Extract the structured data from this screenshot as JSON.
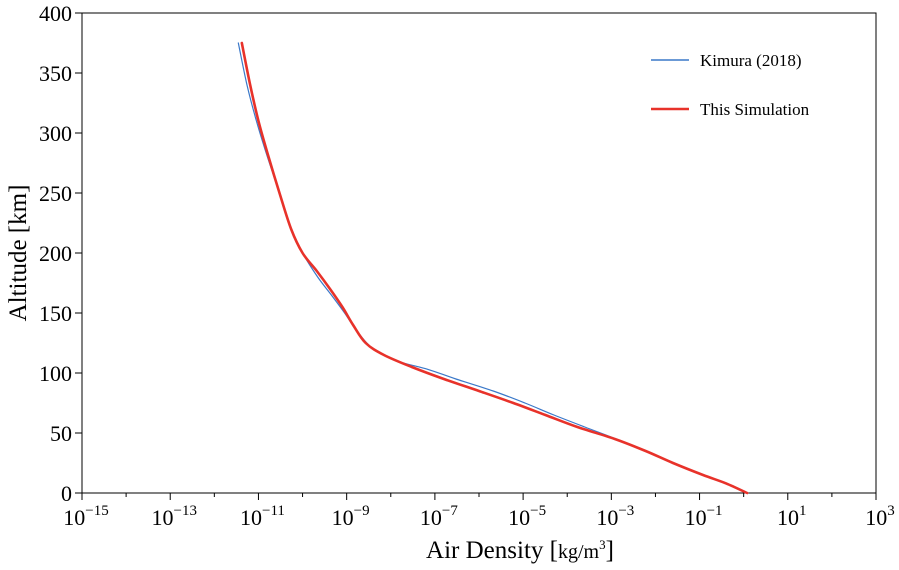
{
  "chart_data": {
    "type": "line",
    "xscale": "log",
    "xlim": [
      1e-15,
      1000
    ],
    "ylim": [
      0,
      400
    ],
    "xlabel": "Air Density",
    "xlabel_unit_base": "kg/m",
    "xlabel_unit_exp": "3",
    "ylabel": "Altitude [km]",
    "grid": false,
    "legend_position": "top-right",
    "x_ticks": [
      {
        "base": "10",
        "exp": "−15",
        "value": 1e-15
      },
      {
        "base": "10",
        "exp": "−13",
        "value": 1e-13
      },
      {
        "base": "10",
        "exp": "−11",
        "value": 1e-11
      },
      {
        "base": "10",
        "exp": "−9",
        "value": 1e-09
      },
      {
        "base": "10",
        "exp": "−7",
        "value": 1e-07
      },
      {
        "base": "10",
        "exp": "−5",
        "value": 1e-05
      },
      {
        "base": "10",
        "exp": "−3",
        "value": 0.001
      },
      {
        "base": "10",
        "exp": "−1",
        "value": 0.1
      },
      {
        "base": "10",
        "exp": "1",
        "value": 10
      },
      {
        "base": "10",
        "exp": "3",
        "value": 1000
      }
    ],
    "y_ticks": [
      {
        "label": "0",
        "value": 0
      },
      {
        "label": "50",
        "value": 50
      },
      {
        "label": "100",
        "value": 100
      },
      {
        "label": "150",
        "value": 150
      },
      {
        "label": "200",
        "value": 200
      },
      {
        "label": "250",
        "value": 250
      },
      {
        "label": "300",
        "value": 300
      },
      {
        "label": "350",
        "value": 350
      },
      {
        "label": "400",
        "value": 400
      }
    ],
    "series": [
      {
        "name": "Kimura (2018)",
        "color": "#3a78c9",
        "width": "thin",
        "points": [
          [
            1.2,
            0
          ],
          [
            0.4,
            8
          ],
          [
            0.12,
            15
          ],
          [
            0.025,
            25
          ],
          [
            0.006,
            35
          ],
          [
            0.0013,
            45
          ],
          [
            0.00025,
            55
          ],
          [
            5e-05,
            65
          ],
          [
            1.1e-05,
            75
          ],
          [
            2.1e-06,
            85
          ],
          [
            3e-07,
            95
          ],
          [
            7e-08,
            103
          ],
          [
            1.4e-08,
            110
          ],
          [
            4e-09,
            120
          ],
          [
            1.7e-09,
            135
          ],
          [
            9e-10,
            150
          ],
          [
            4.5e-10,
            165
          ],
          [
            2.2e-10,
            180
          ],
          [
            1e-10,
            200
          ],
          [
            5.5e-11,
            220
          ],
          [
            3e-11,
            250
          ],
          [
            1.6e-11,
            280
          ],
          [
            9e-12,
            310
          ],
          [
            5.5e-12,
            340
          ],
          [
            3.5e-12,
            375
          ]
        ]
      },
      {
        "name": "This Simulation",
        "color": "#e8322a",
        "width": "thick",
        "points": [
          [
            1.2,
            0
          ],
          [
            0.4,
            8
          ],
          [
            0.12,
            15
          ],
          [
            0.025,
            25
          ],
          [
            0.006,
            35
          ],
          [
            0.0012,
            45
          ],
          [
            0.00017,
            55
          ],
          [
            3.2e-05,
            65
          ],
          [
            6e-06,
            75
          ],
          [
            1e-06,
            85
          ],
          [
            1.6e-07,
            95
          ],
          [
            3e-08,
            105
          ],
          [
            7e-09,
            115
          ],
          [
            2.7e-09,
            125
          ],
          [
            1.4e-09,
            140
          ],
          [
            8e-10,
            155
          ],
          [
            4.2e-10,
            170
          ],
          [
            2.1e-10,
            185
          ],
          [
            1e-10,
            200
          ],
          [
            5.5e-11,
            220
          ],
          [
            3e-11,
            250
          ],
          [
            1.7e-11,
            280
          ],
          [
            1e-11,
            310
          ],
          [
            6.5e-12,
            340
          ],
          [
            4.2e-12,
            375
          ]
        ]
      }
    ]
  }
}
